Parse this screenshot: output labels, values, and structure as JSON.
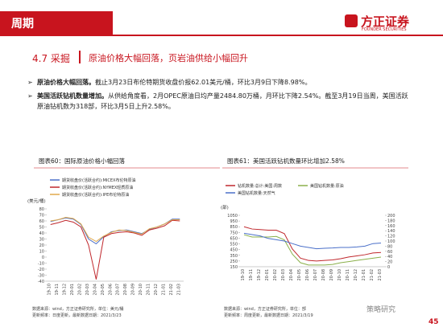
{
  "header": {
    "title": "周期",
    "logo": "方正证券",
    "logo_en": "FOUNDER SECURITIES"
  },
  "section": {
    "number": "4.7 采掘",
    "heading": "原油价格大幅回落，页岩油供给小幅回升"
  },
  "bullets": [
    {
      "bold": "原油价格大幅回落。",
      "text": "截止3月23日布伦特期货收盘价报62.01美元/桶，环比3月9日下降8.98%。"
    },
    {
      "bold": "美国活跃钻机数量增加。",
      "text": "从供给角度看，2月OPEC原油日均产量2484.80万桶，月环比下降2.54%。截至3月19日当周，美国活跃原油钻机数为318部，环比3月5日上升2.58%。"
    }
  ],
  "chart_data": [
    {
      "type": "line",
      "title": "图表60：国际原油价格小幅回落",
      "y_label": "(美元/桶)",
      "categories": [
        "19-10",
        "19-11",
        "19-12",
        "20-01",
        "20-02",
        "20-03",
        "20-04",
        "20-05",
        "20-06",
        "20-07",
        "20-08",
        "20-09",
        "20-10",
        "20-11",
        "20-12",
        "21-01",
        "21-02",
        "21-03"
      ],
      "series": [
        {
          "name": "期货收盘价(活跃合约):MICEX布伦特原油",
          "color": "#4a6fc9",
          "values": [
            59,
            62,
            65,
            63,
            54,
            30,
            22,
            34,
            42,
            44,
            45,
            42,
            39,
            46,
            50,
            55,
            63,
            63
          ]
        },
        {
          "name": "期货收盘价(活跃合约):NYMEX轻质原油",
          "color": "#c0282d",
          "values": [
            54,
            57,
            61,
            58,
            50,
            20,
            -37,
            33,
            39,
            41,
            42,
            40,
            36,
            45,
            48,
            52,
            61,
            60
          ]
        },
        {
          "name": "期货收盘价(活跃合约):IPE布伦特原油",
          "color": "#e0a84a",
          "values": [
            60,
            62,
            66,
            64,
            55,
            33,
            26,
            35,
            41,
            45,
            44,
            41,
            38,
            47,
            50,
            55,
            62,
            62
          ]
        }
      ],
      "ylim": [
        -40,
        80
      ],
      "yticks": [
        -40,
        -30,
        -20,
        -10,
        0,
        10,
        20,
        30,
        40,
        50,
        60,
        70,
        80
      ],
      "source": "数据来源：wind，方正证券研究所，单位：美元/桶",
      "update": "更新频率：日度更新，最新数据日期：2021/3/23"
    },
    {
      "type": "line",
      "title": "图表61：美国活跃钻机数量环比增加2.58%",
      "y_label": "(部)",
      "categories": [
        "19-10",
        "19-11",
        "19-12",
        "20-01",
        "20-02",
        "20-03",
        "20-04",
        "20-05",
        "20-06",
        "20-07",
        "20-08",
        "20-09",
        "20-10",
        "20-11",
        "20-12",
        "21-01",
        "21-02",
        "21-03"
      ],
      "series": [
        {
          "name": "钻机数量:总计:美国:周数",
          "color": "#c0282d",
          "values": [
            850,
            810,
            800,
            790,
            790,
            730,
            460,
            300,
            260,
            250,
            260,
            270,
            290,
            320,
            340,
            360,
            390,
            400
          ]
        },
        {
          "name": "美国钻机数量:原油",
          "color": "#8ab04a",
          "values": [
            710,
            670,
            670,
            670,
            680,
            620,
            370,
            220,
            180,
            180,
            180,
            190,
            220,
            240,
            260,
            280,
            300,
            318
          ]
        },
        {
          "name": "美国钻机数量:天然气",
          "color": "#4a6fc9",
          "axis": "y2",
          "values": [
            130,
            125,
            120,
            110,
            105,
            100,
            90,
            80,
            75,
            70,
            72,
            73,
            75,
            75,
            77,
            80,
            90,
            92
          ]
        }
      ],
      "ylim": [
        150,
        1050
      ],
      "yticks": [
        150,
        250,
        350,
        450,
        550,
        650,
        750,
        850,
        950,
        1050
      ],
      "y2lim": [
        0,
        200
      ],
      "y2ticks": [
        0,
        20,
        40,
        60,
        80,
        100,
        120,
        140,
        160,
        180,
        200
      ],
      "source": "数据来源：wind，方正证券研究所，单位：部",
      "update": "更新频率：周度更新，最新数据日期：2021/3/19"
    }
  ],
  "watermark": "策略研究",
  "page_number": "45"
}
